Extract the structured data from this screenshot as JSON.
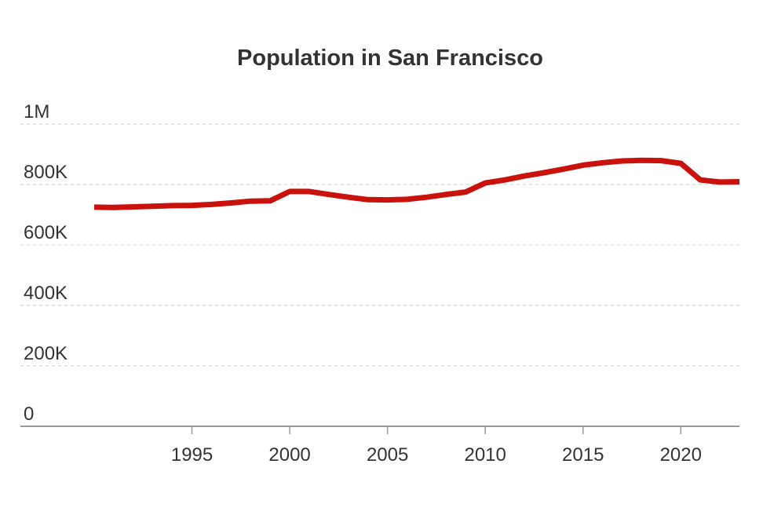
{
  "chart_data": {
    "type": "line",
    "title": "Population in San Francisco",
    "xlabel": "",
    "ylabel": "",
    "x": [
      1990,
      1991,
      1992,
      1993,
      1994,
      1995,
      1996,
      1997,
      1998,
      1999,
      2000,
      2001,
      2002,
      2003,
      2004,
      2005,
      2006,
      2007,
      2008,
      2009,
      2010,
      2011,
      2012,
      2013,
      2014,
      2015,
      2016,
      2017,
      2018,
      2019,
      2020,
      2021,
      2022,
      2023
    ],
    "series": [
      {
        "name": "",
        "color": "#c9120b",
        "values": [
          725000,
          724000,
          726000,
          728000,
          730000,
          731000,
          734000,
          739000,
          745000,
          746000,
          777000,
          777000,
          767000,
          758000,
          750000,
          749000,
          751000,
          758000,
          767000,
          775000,
          805000,
          815000,
          828000,
          839000,
          851000,
          864000,
          872000,
          878000,
          880000,
          879000,
          870000,
          815000,
          808000,
          809000
        ]
      }
    ],
    "xticks": [
      1995,
      2000,
      2005,
      2010,
      2015,
      2020
    ],
    "xtick_labels": [
      "1995",
      "2000",
      "2005",
      "2010",
      "2015",
      "2020"
    ],
    "yticks": [
      0,
      200000,
      400000,
      600000,
      800000,
      1000000
    ],
    "ytick_labels": [
      "0",
      "200K",
      "400K",
      "600K",
      "800K",
      "1M"
    ],
    "xlim": [
      1986.3,
      2023
    ],
    "ylim": [
      0,
      1000000
    ],
    "grid": true,
    "legend": "none",
    "colors": {
      "line": "#c9120b",
      "grid": "#cccccc",
      "axis": "#999999",
      "text": "#333333"
    }
  }
}
